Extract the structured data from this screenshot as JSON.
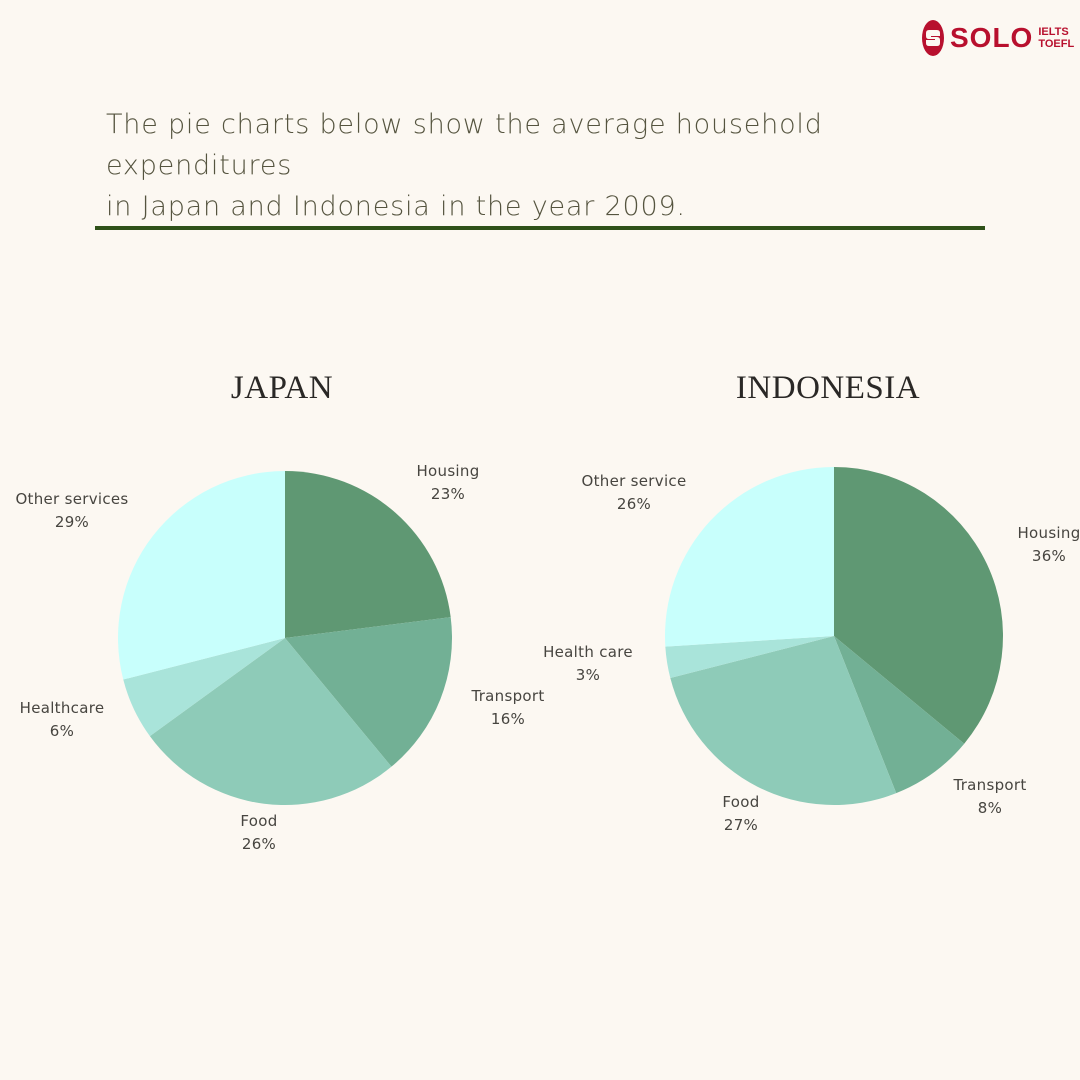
{
  "brand": {
    "name": "SOLO",
    "sub1": "IELTS",
    "sub2": "TOEFL",
    "color": "#b8102e"
  },
  "headline": {
    "line1": "The pie charts below show the average household expenditures",
    "line2": "in Japan and Indonesia in the year 2009."
  },
  "chart_data": [
    {
      "type": "pie",
      "title": "JAPAN",
      "categories": [
        "Housing",
        "Transport",
        "Food",
        "Healthcare",
        "Other services"
      ],
      "values": [
        23,
        16,
        26,
        6,
        29
      ],
      "labels": [
        "23%",
        "16%",
        "26%",
        "6%",
        "29%"
      ],
      "colors": [
        "#5f9873",
        "#72b095",
        "#8ecbb8",
        "#a9e4da",
        "#c8fffc"
      ]
    },
    {
      "type": "pie",
      "title": "INDONESIA",
      "categories": [
        "Housing",
        "Transport",
        "Food",
        "Health care",
        "Other service"
      ],
      "values": [
        36,
        8,
        27,
        3,
        26
      ],
      "labels": [
        "36%",
        "8%",
        "27%",
        "3%",
        "26%"
      ],
      "colors": [
        "#5f9873",
        "#72b095",
        "#8ecbb8",
        "#a9e4da",
        "#c8fffc"
      ]
    }
  ]
}
